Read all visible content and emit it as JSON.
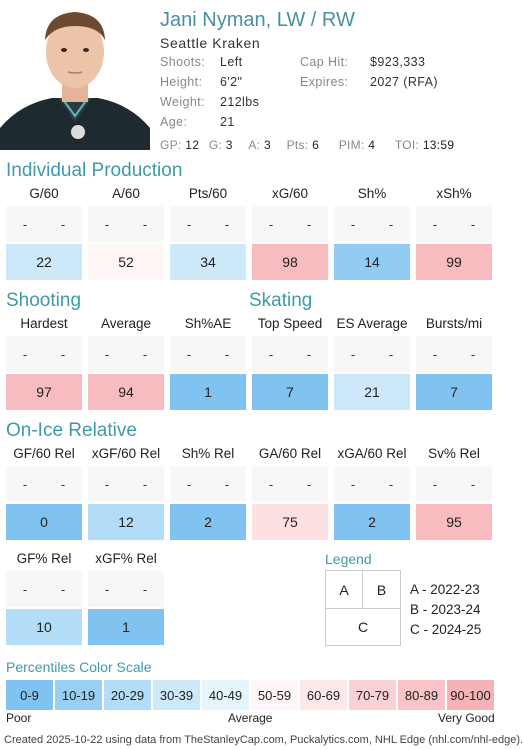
{
  "player": {
    "name": "Jani Nyman, LW / RW",
    "team": "Seattle Kraken",
    "shoots_label": "Shoots:",
    "shoots": "Left",
    "height_label": "Height:",
    "height": "6'2\"",
    "weight_label": "Weight:",
    "weight": "212lbs",
    "age_label": "Age:",
    "age": "21",
    "caphit_label": "Cap Hit:",
    "caphit": "$923,333",
    "expires_label": "Expires:",
    "expires": "2027 (RFA)"
  },
  "stats_line": {
    "gp_label": "GP:",
    "gp": "12",
    "g_label": "G:",
    "g": "3",
    "a_label": "A:",
    "a": "3",
    "pts_label": "Pts:",
    "pts": "6",
    "pim_label": "PIM:",
    "pim": "4",
    "toi_label": "TOI:",
    "toi": "13:59"
  },
  "sections": {
    "individual": "Individual Production",
    "shooting": "Shooting",
    "skating": "Skating",
    "onice": "On-Ice Relative"
  },
  "metrics": {
    "individual": [
      {
        "label": "G/60",
        "a": "-",
        "b": "-",
        "c": "22",
        "color": "#cce8f9"
      },
      {
        "label": "A/60",
        "a": "-",
        "b": "-",
        "c": "52",
        "color": "#fff6f6"
      },
      {
        "label": "Pts/60",
        "a": "-",
        "b": "-",
        "c": "34",
        "color": "#cce8f9"
      },
      {
        "label": "xG/60",
        "a": "-",
        "b": "-",
        "c": "98",
        "color": "#f8bcc0"
      },
      {
        "label": "Sh%",
        "a": "-",
        "b": "-",
        "c": "14",
        "color": "#92cbf2"
      },
      {
        "label": "xSh%",
        "a": "-",
        "b": "-",
        "c": "99",
        "color": "#f8bcc0"
      }
    ],
    "shooting": [
      {
        "label": "Hardest",
        "a": "-",
        "b": "-",
        "c": "97",
        "color": "#f8bcc0"
      },
      {
        "label": "Average",
        "a": "-",
        "b": "-",
        "c": "94",
        "color": "#f8bcc0"
      },
      {
        "label": "Sh%AE",
        "a": "-",
        "b": "-",
        "c": "1",
        "color": "#80c2f0"
      }
    ],
    "skating": [
      {
        "label": "Top Speed",
        "a": "-",
        "b": "-",
        "c": "7",
        "color": "#80c2f0"
      },
      {
        "label": "ES Average",
        "a": "-",
        "b": "-",
        "c": "21",
        "color": "#cce8f9"
      },
      {
        "label": "Bursts/mi",
        "a": "-",
        "b": "-",
        "c": "7",
        "color": "#80c2f0"
      }
    ],
    "onice": [
      {
        "label": "GF/60 Rel",
        "a": "-",
        "b": "-",
        "c": "0",
        "color": "#80c2f0"
      },
      {
        "label": "xGF/60 Rel",
        "a": "-",
        "b": "-",
        "c": "12",
        "color": "#b3dcf6"
      },
      {
        "label": "Sh% Rel",
        "a": "-",
        "b": "-",
        "c": "2",
        "color": "#80c2f0"
      },
      {
        "label": "GA/60 Rel",
        "a": "-",
        "b": "-",
        "c": "75",
        "color": "#fde0e2"
      },
      {
        "label": "xGA/60 Rel",
        "a": "-",
        "b": "-",
        "c": "2",
        "color": "#80c2f0"
      },
      {
        "label": "Sv% Rel",
        "a": "-",
        "b": "-",
        "c": "95",
        "color": "#f8bcc0"
      }
    ],
    "onice2": [
      {
        "label": "GF% Rel",
        "a": "-",
        "b": "-",
        "c": "10",
        "color": "#b3dcf6"
      },
      {
        "label": "xGF% Rel",
        "a": "-",
        "b": "-",
        "c": "1",
        "color": "#80c2f0"
      }
    ]
  },
  "legend": {
    "title": "Legend",
    "a": "A",
    "b": "B",
    "c": "C",
    "a_text": "A - 2022-23",
    "b_text": "B - 2023-24",
    "c_text": "C - 2024-25"
  },
  "scale": {
    "title": "Percentiles Color Scale",
    "cells": [
      {
        "label": "0-9",
        "color": "#80c2f0"
      },
      {
        "label": "10-19",
        "color": "#99cff3"
      },
      {
        "label": "20-29",
        "color": "#b3dcf6"
      },
      {
        "label": "30-39",
        "color": "#cce8f9"
      },
      {
        "label": "40-49",
        "color": "#e6f4fc"
      },
      {
        "label": "50-59",
        "color": "#fff6f6"
      },
      {
        "label": "60-69",
        "color": "#fde8ea"
      },
      {
        "label": "70-79",
        "color": "#fad2d5"
      },
      {
        "label": "80-89",
        "color": "#f8c4c8"
      },
      {
        "label": "90-100",
        "color": "#f5b3b8"
      }
    ],
    "poor": "Poor",
    "average": "Average",
    "very_good": "Very Good"
  },
  "footer": "Created 2025-10-22 using data from TheStanleyCap.com, Puckalytics.com, NHL Edge (nhl.com/nhl-edge)."
}
